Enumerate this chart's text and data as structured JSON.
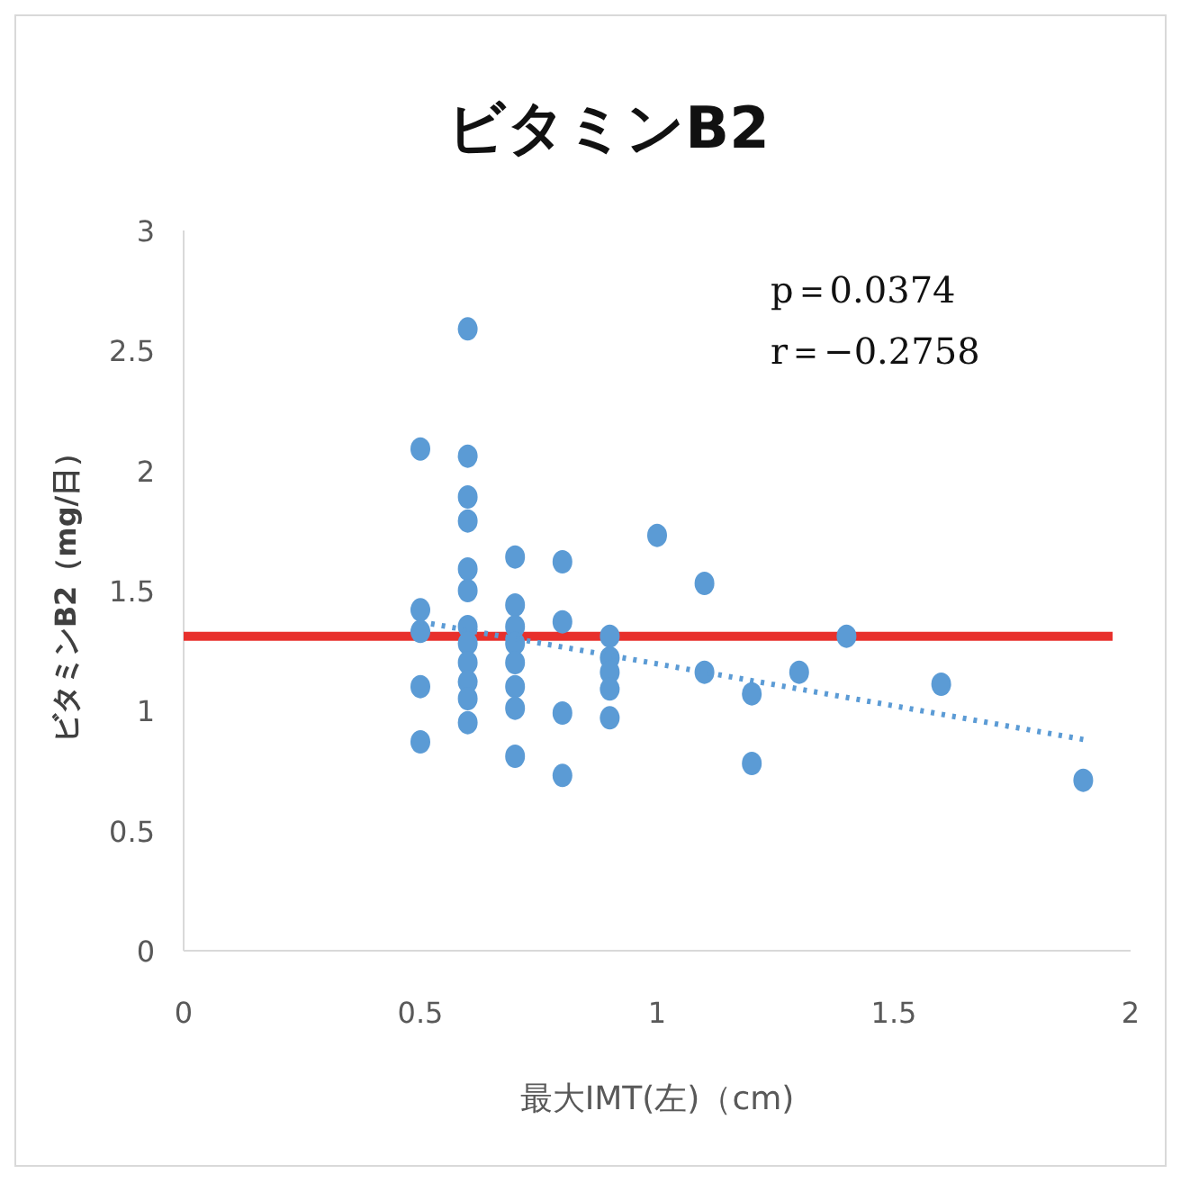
{
  "chart_data": {
    "type": "scatter",
    "title": "ビタミンB2",
    "xlabel": "最大IMT(左)（cm)",
    "ylabel": "ビタミンB2（mg/日）",
    "xlim": [
      0,
      2
    ],
    "xticks": [
      0,
      0.5,
      1,
      1.5,
      2
    ],
    "ylim": [
      0,
      3
    ],
    "yticks": [
      0,
      0.5,
      1,
      1.5,
      2,
      2.5,
      3
    ],
    "grid": false,
    "marker": "circle",
    "annotations": [
      "p＝0.0374",
      "r＝−0.2758"
    ],
    "ref_lines": [
      {
        "axis": "y",
        "value": 1.31,
        "color": "#e8302c",
        "line_style": "solid"
      }
    ],
    "series": [
      {
        "color": "#5b9bd5",
        "x": [
          0.5,
          0.5,
          0.5,
          0.5,
          0.5,
          0.6,
          0.6,
          0.6,
          0.6,
          0.6,
          0.6,
          0.6,
          0.6,
          0.6,
          0.6,
          0.6,
          0.6,
          0.7,
          0.7,
          0.7,
          0.7,
          0.7,
          0.7,
          0.7,
          0.7,
          0.8,
          0.8,
          0.8,
          0.8,
          0.9,
          0.9,
          0.9,
          0.9,
          0.9,
          1.0,
          1.1,
          1.1,
          1.2,
          1.2,
          1.3,
          1.4,
          1.6,
          1.9
        ],
        "values": [
          2.09,
          1.42,
          1.33,
          1.1,
          0.87,
          2.59,
          2.06,
          1.89,
          1.79,
          1.59,
          1.5,
          1.35,
          1.28,
          1.2,
          1.12,
          1.05,
          0.95,
          1.64,
          1.44,
          1.35,
          1.28,
          1.2,
          1.1,
          1.01,
          0.81,
          1.62,
          1.37,
          0.99,
          0.73,
          1.31,
          1.22,
          1.16,
          1.09,
          0.97,
          1.73,
          1.53,
          1.16,
          1.07,
          0.78,
          1.16,
          1.31,
          1.11,
          0.71
        ]
      },
      {
        "type": "line",
        "color": "#5b9bd5",
        "line_style": "dotted",
        "marker": "none",
        "x": [
          0.5,
          1.9
        ],
        "values": [
          1.37,
          0.88
        ]
      }
    ]
  }
}
